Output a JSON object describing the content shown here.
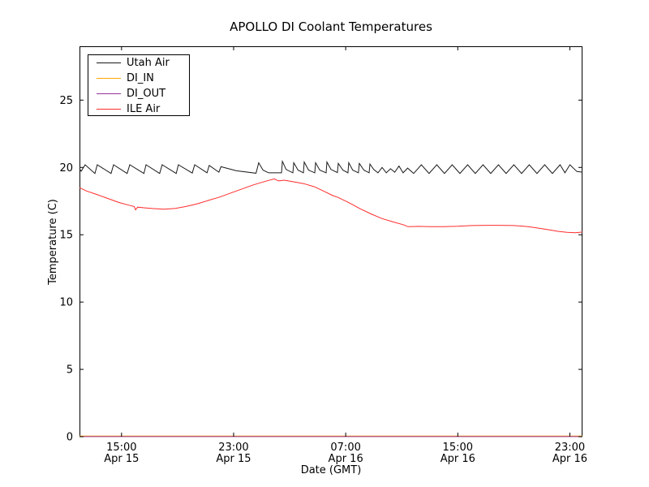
{
  "chart_data": {
    "type": "line",
    "title": "APOLLO DI Coolant Temperatures",
    "xlabel": "Date (GMT)",
    "ylabel": "Temperature (C)",
    "x_unit": "hours since Apr 15 12:00 GMT",
    "xlim": [
      0,
      35.9
    ],
    "ylim": [
      0,
      29
    ],
    "grid": false,
    "legend_position": "upper left",
    "yticks": [
      0,
      5,
      10,
      15,
      20,
      25
    ],
    "xticks": [
      {
        "t": 3,
        "time": "15:00",
        "date": "Apr 15"
      },
      {
        "t": 11,
        "time": "23:00",
        "date": "Apr 15"
      },
      {
        "t": 19,
        "time": "07:00",
        "date": "Apr 16"
      },
      {
        "t": 27,
        "time": "15:00",
        "date": "Apr 16"
      },
      {
        "t": 35,
        "time": "23:00",
        "date": "Apr 16"
      }
    ],
    "series": [
      {
        "name": "Utah Air",
        "color": "#1a1a1a",
        "points": [
          [
            0,
            19.9
          ],
          [
            0.12,
            19.72
          ],
          [
            0.4,
            20.2
          ],
          [
            1.1,
            19.55
          ],
          [
            1.27,
            20.2
          ],
          [
            2.25,
            19.55
          ],
          [
            2.43,
            20.2
          ],
          [
            3.4,
            19.55
          ],
          [
            3.59,
            20.2
          ],
          [
            4.6,
            19.55
          ],
          [
            4.75,
            20.2
          ],
          [
            5.72,
            19.55
          ],
          [
            5.9,
            20.2
          ],
          [
            6.9,
            19.55
          ],
          [
            7.06,
            20.2
          ],
          [
            8.05,
            19.58
          ],
          [
            8.22,
            20.2
          ],
          [
            9.1,
            19.6
          ],
          [
            9.26,
            20.15
          ],
          [
            9.95,
            19.65
          ],
          [
            10.1,
            20.05
          ],
          [
            11.2,
            19.75
          ],
          [
            12.6,
            19.57
          ],
          [
            12.79,
            20.35
          ],
          [
            13.1,
            19.8
          ],
          [
            13.5,
            19.6
          ],
          [
            14.42,
            19.6
          ],
          [
            14.48,
            20.45
          ],
          [
            14.75,
            19.85
          ],
          [
            15.23,
            19.6
          ],
          [
            15.29,
            20.35
          ],
          [
            15.6,
            19.8
          ],
          [
            15.98,
            19.6
          ],
          [
            16.04,
            20.4
          ],
          [
            16.35,
            19.8
          ],
          [
            16.79,
            19.6
          ],
          [
            16.85,
            20.35
          ],
          [
            17.15,
            19.8
          ],
          [
            17.6,
            19.6
          ],
          [
            17.66,
            20.4
          ],
          [
            17.95,
            19.85
          ],
          [
            18.41,
            19.62
          ],
          [
            18.47,
            20.3
          ],
          [
            18.8,
            19.8
          ],
          [
            19.16,
            19.6
          ],
          [
            19.22,
            20.35
          ],
          [
            19.5,
            19.8
          ],
          [
            19.91,
            19.6
          ],
          [
            19.97,
            20.3
          ],
          [
            20.3,
            19.8
          ],
          [
            20.67,
            19.6
          ],
          [
            20.73,
            20.25
          ],
          [
            21.0,
            19.85
          ],
          [
            21.3,
            19.6
          ],
          [
            21.6,
            20.0
          ],
          [
            21.9,
            19.6
          ],
          [
            22.2,
            19.9
          ],
          [
            22.5,
            19.65
          ],
          [
            22.8,
            20.1
          ],
          [
            23.1,
            19.6
          ],
          [
            23.42,
            19.95
          ],
          [
            23.85,
            19.55
          ],
          [
            24.4,
            20.2
          ],
          [
            24.95,
            19.55
          ],
          [
            25.5,
            20.2
          ],
          [
            26.05,
            19.55
          ],
          [
            26.6,
            20.2
          ],
          [
            27.15,
            19.55
          ],
          [
            27.7,
            20.2
          ],
          [
            28.25,
            19.55
          ],
          [
            28.8,
            20.2
          ],
          [
            29.35,
            19.55
          ],
          [
            29.9,
            20.2
          ],
          [
            30.45,
            19.55
          ],
          [
            31.0,
            20.2
          ],
          [
            31.55,
            19.55
          ],
          [
            32.1,
            20.2
          ],
          [
            32.65,
            19.55
          ],
          [
            33.2,
            20.2
          ],
          [
            33.75,
            19.55
          ],
          [
            34.3,
            20.2
          ],
          [
            34.65,
            19.6
          ],
          [
            35.0,
            20.2
          ],
          [
            35.5,
            19.7
          ],
          [
            35.9,
            19.65
          ]
        ]
      },
      {
        "name": "DI_IN",
        "color": "#ffa500",
        "points": [
          [
            0,
            0
          ],
          [
            35.9,
            0
          ]
        ]
      },
      {
        "name": "DI_OUT",
        "color": "#993399",
        "points": [
          [
            0,
            0
          ],
          [
            35.9,
            0
          ]
        ]
      },
      {
        "name": "ILE Air",
        "color": "#ff2b2b",
        "points": [
          [
            0,
            18.5
          ],
          [
            0.5,
            18.25
          ],
          [
            1.2,
            18.0
          ],
          [
            2.0,
            17.7
          ],
          [
            2.8,
            17.4
          ],
          [
            3.5,
            17.2
          ],
          [
            3.9,
            17.1
          ],
          [
            4.0,
            16.85
          ],
          [
            4.15,
            17.05
          ],
          [
            4.6,
            17.0
          ],
          [
            5.2,
            16.95
          ],
          [
            6.0,
            16.9
          ],
          [
            6.8,
            16.95
          ],
          [
            7.6,
            17.1
          ],
          [
            8.4,
            17.3
          ],
          [
            9.2,
            17.55
          ],
          [
            10.0,
            17.8
          ],
          [
            10.8,
            18.1
          ],
          [
            11.6,
            18.4
          ],
          [
            12.4,
            18.7
          ],
          [
            13.2,
            18.95
          ],
          [
            13.9,
            19.15
          ],
          [
            14.2,
            19.0
          ],
          [
            14.6,
            19.05
          ],
          [
            15.2,
            18.95
          ],
          [
            16.0,
            18.8
          ],
          [
            16.8,
            18.55
          ],
          [
            17.5,
            18.2
          ],
          [
            18.1,
            17.9
          ],
          [
            18.4,
            17.8
          ],
          [
            19.2,
            17.4
          ],
          [
            20.0,
            16.95
          ],
          [
            20.8,
            16.55
          ],
          [
            21.6,
            16.2
          ],
          [
            22.4,
            15.95
          ],
          [
            23.1,
            15.75
          ],
          [
            23.45,
            15.6
          ],
          [
            24.2,
            15.62
          ],
          [
            25.0,
            15.6
          ],
          [
            26.0,
            15.6
          ],
          [
            27.0,
            15.63
          ],
          [
            28.0,
            15.68
          ],
          [
            29.0,
            15.7
          ],
          [
            30.0,
            15.7
          ],
          [
            31.0,
            15.68
          ],
          [
            31.8,
            15.62
          ],
          [
            32.4,
            15.55
          ],
          [
            33.0,
            15.45
          ],
          [
            33.6,
            15.35
          ],
          [
            34.2,
            15.25
          ],
          [
            34.8,
            15.18
          ],
          [
            35.4,
            15.15
          ],
          [
            35.9,
            15.2
          ]
        ]
      }
    ]
  }
}
